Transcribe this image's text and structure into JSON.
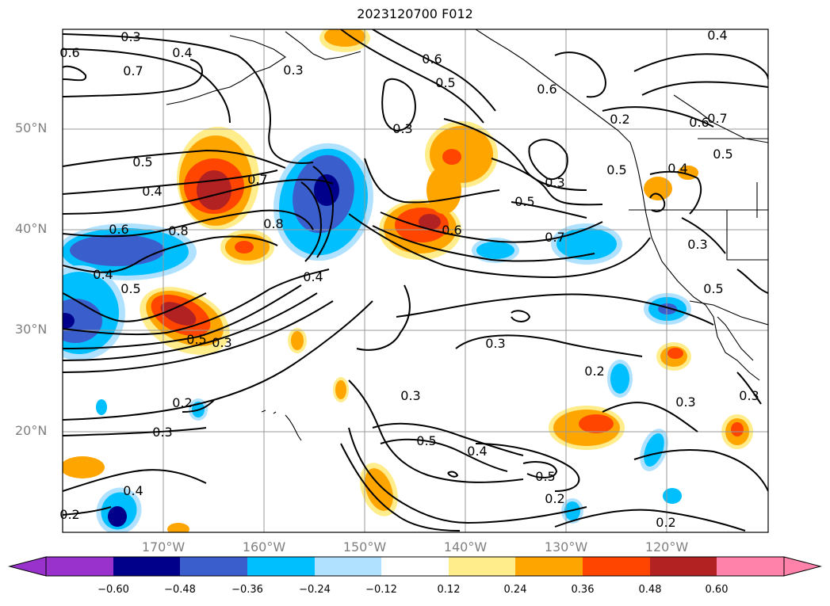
{
  "title": "2023120700 F012",
  "latitude_labels": [
    "50°N",
    "40°N",
    "30°N",
    "20°N"
  ],
  "longitude_labels": [
    "170°W",
    "160°W",
    "150°W",
    "140°W",
    "130°W",
    "120°W"
  ],
  "contour_labels": [
    "0.3",
    "0.4",
    "0.7",
    "0.3",
    "0.6",
    "0.5",
    "0.4",
    "0.3",
    "0.5",
    "0.5",
    "0.4",
    "0.7",
    "0.8",
    "0.6",
    "0.8",
    "0.5",
    "0.6",
    "0.3",
    "0.5",
    "0.7",
    "0.5",
    "0.4",
    "0.5",
    "0.3",
    "0.3",
    "0.2",
    "0.3",
    "0.2",
    "0.3",
    "0.5",
    "0.4",
    "0.5",
    "0.2",
    "0.4",
    "0.3",
    "0.2",
    "0.2",
    "0.7",
    "0.6",
    "0.6",
    "0.4",
    "0.4",
    "0.3",
    "0.5",
    "0.3",
    "0.6",
    "0.2"
  ],
  "colorbar": {
    "colors": [
      "#9932CC",
      "#00008B",
      "#3A5FCD",
      "#00BFFF",
      "#B0E2FF",
      "#FFFFFF",
      "#FFEC8B",
      "#FFA500",
      "#FF4500",
      "#B22222",
      "#FF82AB"
    ],
    "tick_labels": [
      "−0.60",
      "−0.48",
      "−0.36",
      "−0.24",
      "−0.12",
      "0.12",
      "0.24",
      "0.36",
      "0.48",
      "0.60"
    ]
  }
}
